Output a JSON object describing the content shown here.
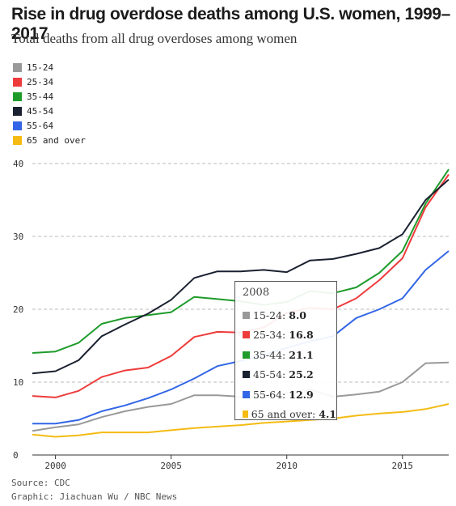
{
  "title": "Rise in drug overdose deaths among U.S. women, 1999–2017",
  "subtitle": "Total deaths from all drug overdoses among women",
  "source": "Source: CDC",
  "credit": "Graphic: Jiachuan Wu / NBC News",
  "colors": {
    "15-24": "#999999",
    "25-34": "#ee3b3b",
    "35-44": "#1e9b2a",
    "45-54": "#1a2130",
    "55-64": "#3366e6",
    "65 and over": "#f5bb14"
  },
  "legend": [
    {
      "label": "15-24",
      "color": "#999999"
    },
    {
      "label": "25-34",
      "color": "#ee3b3b"
    },
    {
      "label": "35-44",
      "color": "#1e9b2a"
    },
    {
      "label": "45-54",
      "color": "#1a2130"
    },
    {
      "label": "55-64",
      "color": "#3366e6"
    },
    {
      "label": "65 and over",
      "color": "#f5bb14"
    }
  ],
  "tooltip": {
    "year": "2008",
    "rows": [
      {
        "label": "15-24:",
        "value": "8.0",
        "color": "#999999"
      },
      {
        "label": "25-34:",
        "value": "16.8",
        "color": "#ee3b3b"
      },
      {
        "label": "35-44:",
        "value": "21.1",
        "color": "#1e9b2a"
      },
      {
        "label": "45-54:",
        "value": "25.2",
        "color": "#1a2130"
      },
      {
        "label": "55-64:",
        "value": "12.9",
        "color": "#3366e6"
      },
      {
        "label": "65 and over:",
        "value": "4.1",
        "color": "#f5bb14"
      }
    ]
  },
  "chart_data": {
    "type": "line",
    "title": "Rise in drug overdose deaths among U.S. women, 1999–2017",
    "subtitle": "Total deaths from all drug overdoses among women",
    "x": [
      1999,
      2000,
      2001,
      2002,
      2003,
      2004,
      2005,
      2006,
      2007,
      2008,
      2009,
      2010,
      2011,
      2012,
      2013,
      2014,
      2015,
      2016,
      2017
    ],
    "xticks": [
      2000,
      2005,
      2010,
      2015
    ],
    "yticks": [
      0,
      10,
      20,
      30,
      40
    ],
    "xlim": [
      1999,
      2017
    ],
    "ylim": [
      0,
      40
    ],
    "grid": true,
    "legend_position": "top-left",
    "highlight_x": 2008,
    "series": [
      {
        "name": "15-24",
        "color": "#999999",
        "values": [
          3.3,
          3.8,
          4.2,
          5.2,
          6.0,
          6.6,
          7.0,
          8.2,
          8.2,
          8.0,
          7.9,
          8.5,
          9.0,
          8.0,
          8.3,
          8.7,
          10.0,
          12.6,
          12.7
        ]
      },
      {
        "name": "25-34",
        "color": "#ee3b3b",
        "values": [
          8.1,
          7.9,
          8.8,
          10.7,
          11.6,
          12.0,
          13.6,
          16.2,
          16.9,
          16.8,
          17.5,
          19.5,
          20.2,
          20.0,
          21.5,
          24.0,
          27.0,
          34.0,
          38.5
        ]
      },
      {
        "name": "35-44",
        "color": "#1e9b2a",
        "values": [
          14.0,
          14.2,
          15.4,
          18.0,
          18.8,
          19.2,
          19.6,
          21.7,
          21.4,
          21.1,
          20.6,
          21.0,
          22.5,
          22.2,
          23.0,
          25.0,
          28.0,
          34.5,
          39.2
        ]
      },
      {
        "name": "45-54",
        "color": "#1a2130",
        "values": [
          11.2,
          11.5,
          13.0,
          16.3,
          17.9,
          19.4,
          21.3,
          24.3,
          25.2,
          25.2,
          25.4,
          25.1,
          26.7,
          26.9,
          27.6,
          28.4,
          30.3,
          35.0,
          37.8
        ]
      },
      {
        "name": "55-64",
        "color": "#3366e6",
        "values": [
          4.3,
          4.3,
          4.8,
          6.0,
          6.8,
          7.8,
          9.0,
          10.5,
          12.2,
          12.9,
          13.7,
          14.7,
          15.6,
          16.3,
          18.8,
          20.0,
          21.5,
          25.4,
          28.0
        ]
      },
      {
        "name": "65 and over",
        "color": "#f5bb14",
        "values": [
          2.8,
          2.5,
          2.7,
          3.1,
          3.1,
          3.1,
          3.4,
          3.7,
          3.9,
          4.1,
          4.4,
          4.6,
          4.8,
          5.0,
          5.4,
          5.7,
          5.9,
          6.3,
          7.0
        ]
      }
    ]
  }
}
